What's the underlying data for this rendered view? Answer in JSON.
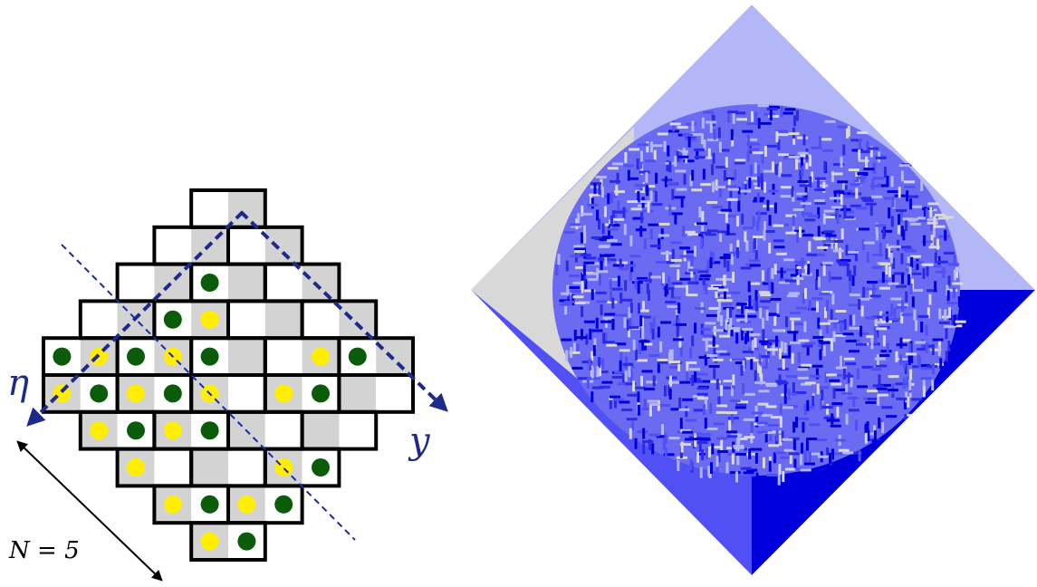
{
  "labels": {
    "eta": "η",
    "y": "y",
    "n": "N = 5"
  }
}
